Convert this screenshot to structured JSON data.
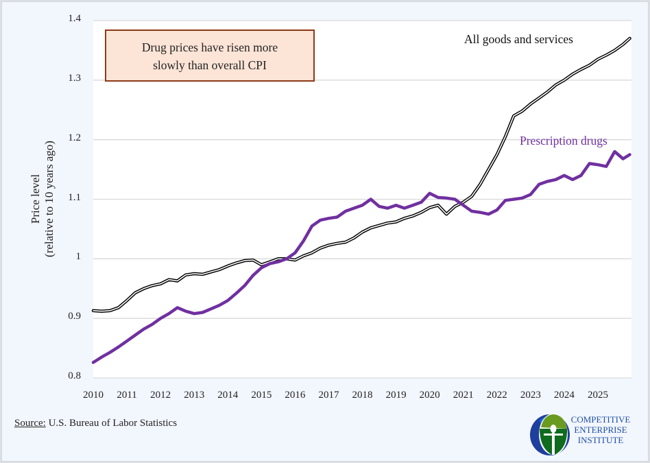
{
  "chart_data": {
    "type": "line",
    "title": "",
    "annotation": "Drug prices have risen more slowly than overall CPI",
    "ylabel": "Price level",
    "ylabel_sub": "(relative to 10 years ago)",
    "xlabel": "",
    "ylim": [
      0.8,
      1.4
    ],
    "xlim": [
      2010,
      2026
    ],
    "yticks": [
      "1.4",
      "1.3",
      "1.2",
      "1.1",
      "1",
      "0.9",
      "0.8"
    ],
    "ytick_values": [
      1.4,
      1.3,
      1.2,
      1.1,
      1.0,
      0.9,
      0.8
    ],
    "xticks": [
      "2010",
      "2011",
      "2012",
      "2013",
      "2014",
      "2015",
      "2016",
      "2017",
      "2018",
      "2019",
      "2020",
      "2021",
      "2022",
      "2023",
      "2024",
      "2025"
    ],
    "grid": true,
    "legend": "inline-labels",
    "x": [
      2010.0,
      2010.25,
      2010.5,
      2010.75,
      2011.0,
      2011.25,
      2011.5,
      2011.75,
      2012.0,
      2012.25,
      2012.5,
      2012.75,
      2013.0,
      2013.25,
      2013.5,
      2013.75,
      2014.0,
      2014.25,
      2014.5,
      2014.75,
      2015.0,
      2015.25,
      2015.5,
      2015.75,
      2016.0,
      2016.25,
      2016.5,
      2016.75,
      2017.0,
      2017.25,
      2017.5,
      2017.75,
      2018.0,
      2018.25,
      2018.5,
      2018.75,
      2019.0,
      2019.25,
      2019.5,
      2019.75,
      2020.0,
      2020.25,
      2020.5,
      2020.75,
      2021.0,
      2021.25,
      2021.5,
      2021.75,
      2022.0,
      2022.25,
      2022.5,
      2022.75,
      2023.0,
      2023.25,
      2023.5,
      2023.75,
      2024.0,
      2024.25,
      2024.5,
      2024.75,
      2025.0,
      2025.25,
      2025.5,
      2025.75,
      2025.95
    ],
    "series": [
      {
        "name": "All goods and services",
        "color": "#000000",
        "style": "double-line",
        "values": [
          0.913,
          0.912,
          0.913,
          0.918,
          0.93,
          0.943,
          0.95,
          0.955,
          0.958,
          0.965,
          0.963,
          0.973,
          0.975,
          0.974,
          0.978,
          0.982,
          0.988,
          0.993,
          0.997,
          0.998,
          0.99,
          0.995,
          1.0,
          1.0,
          0.998,
          1.005,
          1.01,
          1.018,
          1.023,
          1.026,
          1.028,
          1.035,
          1.045,
          1.052,
          1.056,
          1.06,
          1.062,
          1.068,
          1.072,
          1.078,
          1.086,
          1.09,
          1.075,
          1.088,
          1.095,
          1.105,
          1.125,
          1.15,
          1.175,
          1.205,
          1.24,
          1.248,
          1.26,
          1.27,
          1.28,
          1.292,
          1.3,
          1.31,
          1.318,
          1.325,
          1.335,
          1.342,
          1.35,
          1.36,
          1.37
        ]
      },
      {
        "name": "Prescription drugs",
        "color": "#7030a0",
        "style": "thick-line",
        "values": [
          0.826,
          0.835,
          0.843,
          0.852,
          0.862,
          0.872,
          0.882,
          0.89,
          0.9,
          0.908,
          0.918,
          0.912,
          0.908,
          0.91,
          0.916,
          0.922,
          0.93,
          0.942,
          0.955,
          0.972,
          0.985,
          0.992,
          0.995,
          1.0,
          1.01,
          1.03,
          1.055,
          1.065,
          1.068,
          1.07,
          1.08,
          1.085,
          1.09,
          1.1,
          1.088,
          1.085,
          1.09,
          1.085,
          1.09,
          1.095,
          1.11,
          1.103,
          1.102,
          1.1,
          1.09,
          1.08,
          1.078,
          1.075,
          1.082,
          1.098,
          1.1,
          1.102,
          1.108,
          1.125,
          1.13,
          1.133,
          1.14,
          1.133,
          1.14,
          1.16,
          1.158,
          1.155,
          1.18,
          1.168,
          1.175
        ]
      }
    ]
  },
  "text": {
    "callout_line1": "Drug prices have risen more",
    "callout_line2": "slowly than overall CPI",
    "ylabel_line1": "Price level",
    "ylabel_line2": "(relative to 10 years ago)",
    "label_all": "All goods and services",
    "label_rx": "Prescription drugs",
    "source_label": "Source:",
    "source_text": " U.S. Bureau of Labor Statistics",
    "logo_line1": "COMPETITIVE",
    "logo_line2": "ENTERPRISE",
    "logo_line3": "INSTITUTE"
  },
  "colors": {
    "background": "#f2f6fd",
    "plot_background": "#ffffff",
    "grid": "#d9d9d9",
    "callout_fill": "#fce4d6",
    "callout_border": "#8b3a16",
    "cpi_line": "#000000",
    "rx_line": "#7030a0",
    "logo_blue": "#1f4fa5",
    "logo_green": "#6a9a1f",
    "logo_dark_green": "#0f6b1e"
  }
}
